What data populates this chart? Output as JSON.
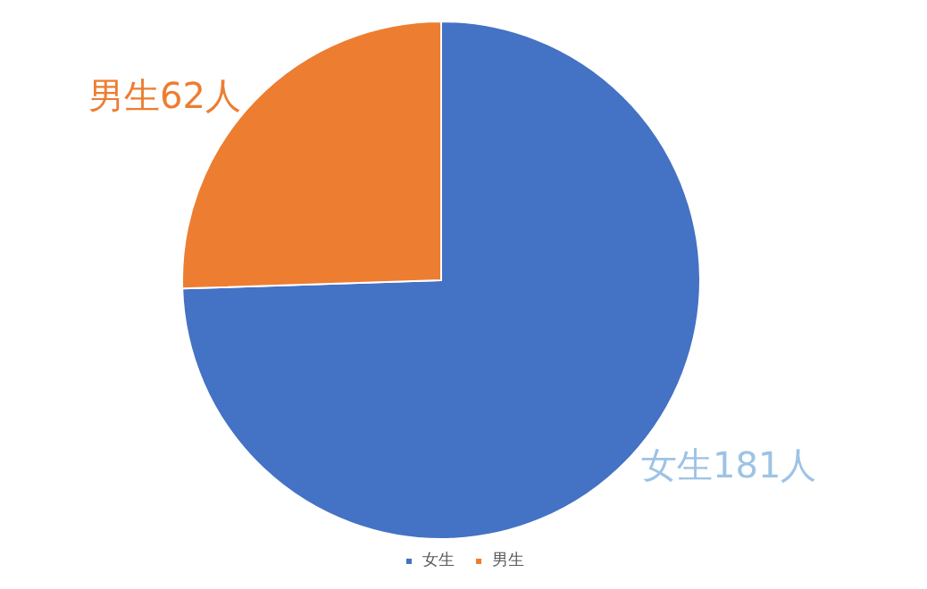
{
  "chart_data": {
    "type": "pie",
    "categories": [
      "女生",
      "男生"
    ],
    "values": [
      181,
      62
    ],
    "colors": [
      "#4472c4",
      "#ed7d31"
    ],
    "value_labels": [
      "女生181人",
      "男生62人"
    ],
    "legend": "bottom"
  }
}
